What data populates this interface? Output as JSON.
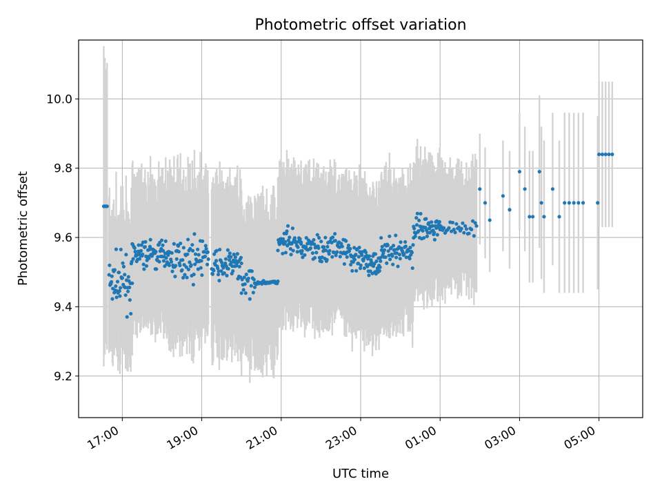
{
  "chart_data": {
    "type": "scatter",
    "title": "Photometric offset variation",
    "xlabel": "UTC time",
    "ylabel": "Photometric offset",
    "x_unit": "hour",
    "x_range": [
      "16:00",
      "06:06"
    ],
    "xlim_hours": [
      15.9,
      30.1
    ],
    "ylim": [
      9.08,
      10.17
    ],
    "x_ticks": [
      {
        "label": "17:00",
        "hour": 17
      },
      {
        "label": "19:00",
        "hour": 19
      },
      {
        "label": "21:00",
        "hour": 21
      },
      {
        "label": "23:00",
        "hour": 23
      },
      {
        "label": "01:00",
        "hour": 25
      },
      {
        "label": "03:00",
        "hour": 27
      },
      {
        "label": "05:00",
        "hour": 29
      }
    ],
    "y_ticks": [
      {
        "label": "9.2",
        "value": 9.2
      },
      {
        "label": "9.4",
        "value": 9.4
      },
      {
        "label": "9.6",
        "value": 9.6
      },
      {
        "label": "9.8",
        "value": 9.8
      },
      {
        "label": "10.0",
        "value": 10.0
      }
    ],
    "grid": true,
    "colors": {
      "points": "#1f77b4",
      "error_bars": "#d3d3d3",
      "grid": "#b0b0b0"
    },
    "series": [
      {
        "marker": "point",
        "error_bars": "vertical",
        "segments": [
          {
            "start": "16:32",
            "end": "16:37",
            "offset": 9.69,
            "error": 0.42,
            "noise": 0.0,
            "count": 4
          },
          {
            "start": "16:40",
            "end": "17:15",
            "offset": 9.47,
            "error": 0.19,
            "noise": 0.07,
            "count": 50
          },
          {
            "start": "17:15",
            "end": "18:10",
            "offset": 9.55,
            "error": 0.2,
            "noise": 0.04,
            "count": 75
          },
          {
            "start": "18:10",
            "end": "19:10",
            "offset": 9.54,
            "error": 0.22,
            "noise": 0.05,
            "count": 75
          },
          {
            "start": "19:15",
            "end": "20:00",
            "offset": 9.52,
            "error": 0.22,
            "noise": 0.04,
            "count": 60
          },
          {
            "start": "20:00",
            "end": "20:20",
            "offset": 9.47,
            "error": 0.2,
            "noise": 0.04,
            "count": 20
          },
          {
            "start": "20:20",
            "end": "20:55",
            "offset": 9.47,
            "error": 0.23,
            "noise": 0.005,
            "count": 30
          },
          {
            "start": "20:55",
            "end": "21:30",
            "offset": 9.58,
            "error": 0.2,
            "noise": 0.04,
            "count": 45
          },
          {
            "start": "21:30",
            "end": "22:45",
            "offset": 9.57,
            "error": 0.2,
            "noise": 0.04,
            "count": 95
          },
          {
            "start": "22:45",
            "end": "23:30",
            "offset": 9.53,
            "error": 0.2,
            "noise": 0.04,
            "count": 60
          },
          {
            "start": "23:30",
            "end": "00:20",
            "offset": 9.56,
            "error": 0.2,
            "noise": 0.04,
            "count": 60
          },
          {
            "start": "00:20",
            "end": "01:00",
            "offset": 9.63,
            "error": 0.18,
            "noise": 0.03,
            "count": 50
          },
          {
            "start": "01:00",
            "end": "01:55",
            "offset": 9.63,
            "error": 0.17,
            "noise": 0.02,
            "count": 30
          }
        ],
        "points": [
          {
            "t": "02:00",
            "offset": 9.74,
            "error": 0.16
          },
          {
            "t": "02:08",
            "offset": 9.7,
            "error": 0.16
          },
          {
            "t": "02:15",
            "offset": 9.65,
            "error": 0.15
          },
          {
            "t": "02:35",
            "offset": 9.72,
            "error": 0.16
          },
          {
            "t": "02:45",
            "offset": 9.68,
            "error": 0.17
          },
          {
            "t": "03:00",
            "offset": 9.79,
            "error": 0.17
          },
          {
            "t": "03:08",
            "offset": 9.74,
            "error": 0.18
          },
          {
            "t": "03:15",
            "offset": 9.66,
            "error": 0.19
          },
          {
            "t": "03:20",
            "offset": 9.66,
            "error": 0.19
          },
          {
            "t": "03:30",
            "offset": 9.79,
            "error": 0.22
          },
          {
            "t": "03:33",
            "offset": 9.7,
            "error": 0.22
          },
          {
            "t": "03:37",
            "offset": 9.66,
            "error": 0.22
          },
          {
            "t": "03:50",
            "offset": 9.74,
            "error": 0.22
          },
          {
            "t": "04:00",
            "offset": 9.66,
            "error": 0.22
          },
          {
            "t": "04:08",
            "offset": 9.7,
            "error": 0.26
          },
          {
            "t": "04:15",
            "offset": 9.7,
            "error": 0.26
          },
          {
            "t": "04:22",
            "offset": 9.7,
            "error": 0.26
          },
          {
            "t": "04:29",
            "offset": 9.7,
            "error": 0.26
          },
          {
            "t": "04:36",
            "offset": 9.7,
            "error": 0.26
          },
          {
            "t": "04:58",
            "offset": 9.7,
            "error": 0.25
          },
          {
            "t": "05:00",
            "offset": 9.84,
            "error": 0.21
          },
          {
            "t": "05:05",
            "offset": 9.84,
            "error": 0.21
          },
          {
            "t": "05:10",
            "offset": 9.84,
            "error": 0.21
          },
          {
            "t": "05:15",
            "offset": 9.84,
            "error": 0.21
          },
          {
            "t": "05:20",
            "offset": 9.84,
            "error": 0.21
          }
        ]
      }
    ]
  }
}
